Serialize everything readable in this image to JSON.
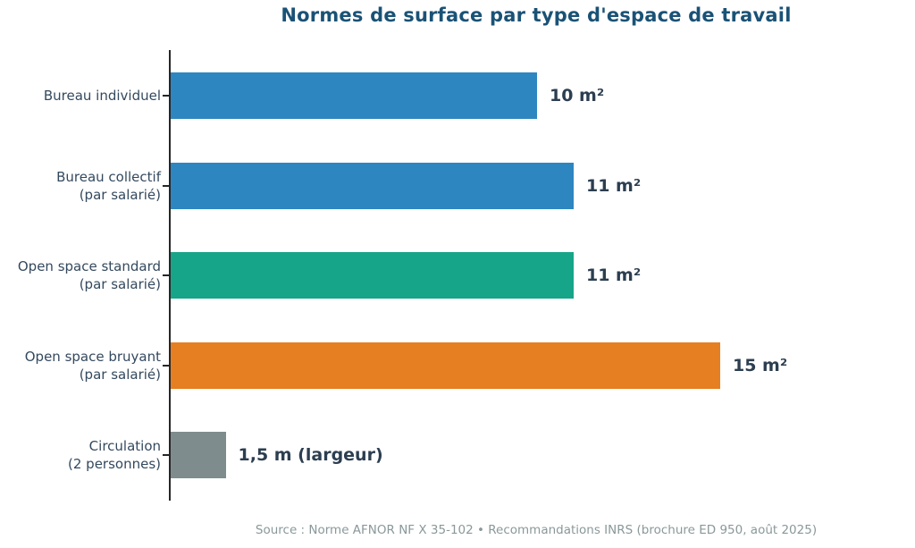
{
  "chart_data": {
    "type": "bar",
    "orientation": "horizontal",
    "title": "Normes de surface par type d'espace de travail",
    "categories": [
      "Bureau individuel",
      "Bureau collectif\n(par salarié)",
      "Open space standard\n(par salarié)",
      "Open space bruyant\n(par salarié)",
      "Circulation\n(2 personnes)"
    ],
    "values": [
      10,
      11,
      11,
      15,
      1.5
    ],
    "value_labels": [
      "10 m²",
      "11 m²",
      "11 m²",
      "15 m²",
      "1,5 m (largeur)"
    ],
    "bar_colors": [
      "#2e86c1",
      "#2e86c1",
      "#17a589",
      "#e67e22",
      "#7f8c8d"
    ],
    "xlabel": "",
    "ylabel": "",
    "xlim": [
      0,
      20
    ],
    "grid": false,
    "legend": "none"
  },
  "footer": {
    "source": "Source : Norme AFNOR NF X 35-102 • Recommandations INRS (brochure ED 950, août 2025)"
  },
  "colors": {
    "title": "#1a5276",
    "category_label": "#34495e",
    "value_label": "#2c3e50",
    "axis": "#262626",
    "source": "#8a9899",
    "background": "#ffffff",
    "bar_blue": "#2e86c1",
    "bar_teal": "#17a589",
    "bar_orange": "#e67e22",
    "bar_gray": "#7f8c8d"
  }
}
